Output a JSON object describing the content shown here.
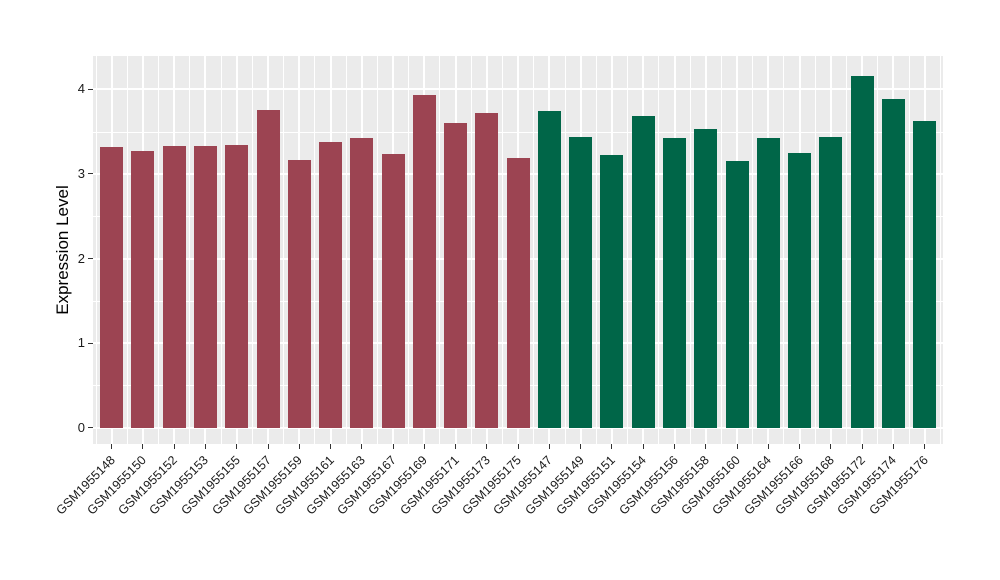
{
  "figure": {
    "background_color": "#FFFFFF",
    "panel_background_color": "#EBEBEB",
    "gridline_color": "#FFFFFF",
    "axis_text_color": "#1A1A1A",
    "tick_mark_color": "#333333"
  },
  "chart_data": {
    "type": "bar",
    "title": "",
    "xlabel": "",
    "ylabel": "Expression Level",
    "ylim": [
      -0.21,
      4.39
    ],
    "yticks": [
      0,
      1,
      2,
      3,
      4
    ],
    "yminor": [
      0.5,
      1.5,
      2.5,
      3.5
    ],
    "grid": "white major and minor gridlines on grey panel",
    "legend_position": "none",
    "x_tick_label_angle": 45,
    "series": [
      {
        "name": "maroon-group",
        "color": "#9C4452",
        "categories": [
          "GSM1955148",
          "GSM1955150",
          "GSM1955152",
          "GSM1955153",
          "GSM1955155",
          "GSM1955157",
          "GSM1955159",
          "GSM1955161",
          "GSM1955163",
          "GSM1955167",
          "GSM1955169",
          "GSM1955171",
          "GSM1955173",
          "GSM1955175"
        ],
        "values": [
          3.32,
          3.27,
          3.33,
          3.33,
          3.34,
          3.75,
          3.17,
          3.38,
          3.43,
          3.24,
          3.93,
          3.6,
          3.72,
          3.19
        ]
      },
      {
        "name": "green-group",
        "color": "#006648",
        "categories": [
          "GSM1955147",
          "GSM1955149",
          "GSM1955151",
          "GSM1955154",
          "GSM1955156",
          "GSM1955158",
          "GSM1955160",
          "GSM1955164",
          "GSM1955166",
          "GSM1955168",
          "GSM1955172",
          "GSM1955174",
          "GSM1955176"
        ],
        "values": [
          3.74,
          3.44,
          3.22,
          3.68,
          3.43,
          3.53,
          3.15,
          3.43,
          3.25,
          3.44,
          4.16,
          3.89,
          3.62
        ]
      }
    ]
  }
}
